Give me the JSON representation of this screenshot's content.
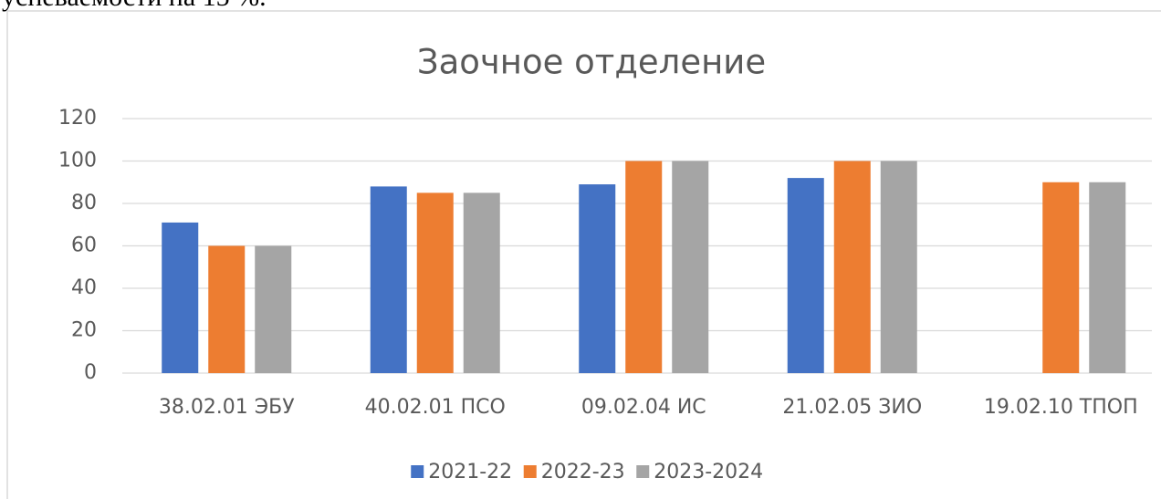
{
  "document_text": "успеваемости на 15 %.",
  "chart_data": {
    "type": "bar",
    "title": "Заочное отделение",
    "categories": [
      "38.02.01 ЭБУ",
      "40.02.01 ПСО",
      "09.02.04 ИС",
      "21.02.05 ЗИО",
      "19.02.10 ТПОП"
    ],
    "series": [
      {
        "name": "2021-22",
        "color": "#4472c4",
        "values": [
          71,
          88,
          89,
          92,
          null
        ]
      },
      {
        "name": "2022-23",
        "color": "#ed7d31",
        "values": [
          60,
          85,
          100,
          100,
          90
        ]
      },
      {
        "name": "2023-2024",
        "color": "#a5a5a5",
        "values": [
          60,
          85,
          100,
          100,
          90
        ]
      }
    ],
    "ylim": [
      0,
      120
    ],
    "yticks": [
      0,
      20,
      40,
      60,
      80,
      100,
      120
    ],
    "grid": true,
    "legend": "bottom"
  }
}
